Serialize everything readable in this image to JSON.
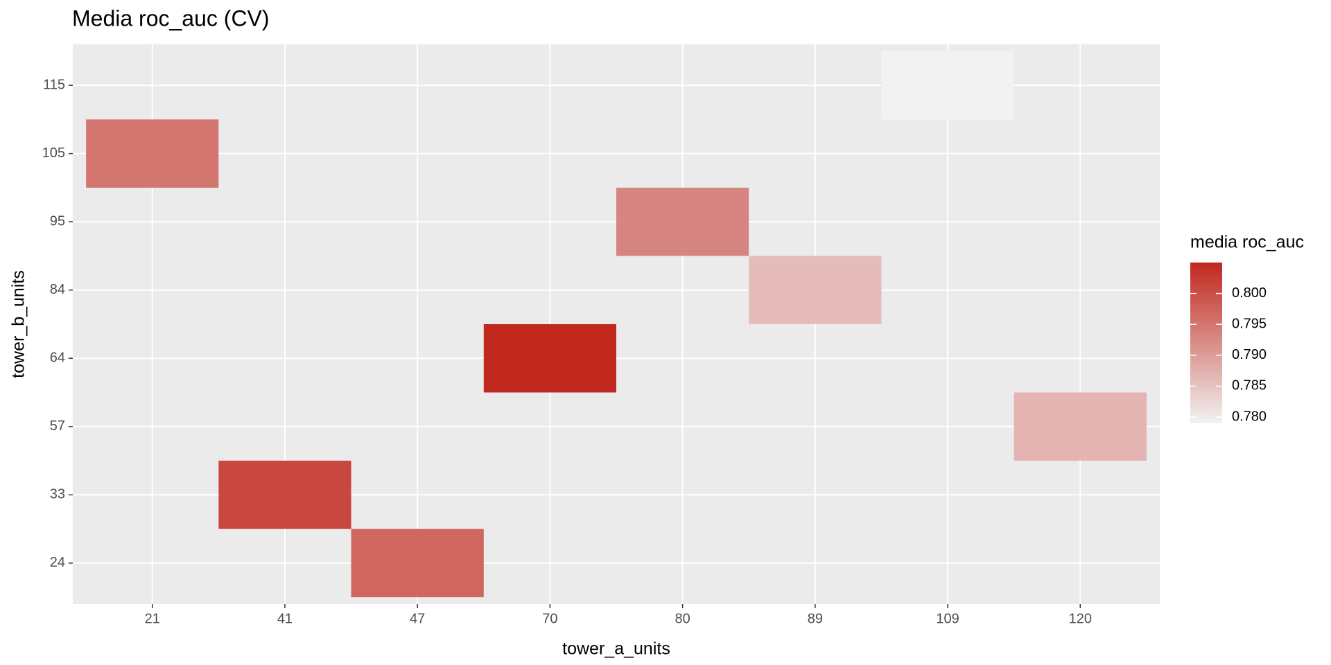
{
  "chart_data": {
    "type": "heatmap",
    "title": "Media roc_auc (CV)",
    "x_label": "tower_a_units",
    "y_label": "tower_b_units",
    "x_categories": [
      "21",
      "41",
      "47",
      "70",
      "80",
      "89",
      "109",
      "120"
    ],
    "y_categories": [
      "24",
      "33",
      "57",
      "64",
      "84",
      "95",
      "105",
      "115"
    ],
    "cells": [
      {
        "x": "21",
        "y": "105",
        "value": 0.795
      },
      {
        "x": "41",
        "y": "33",
        "value": 0.801
      },
      {
        "x": "47",
        "y": "24",
        "value": 0.797
      },
      {
        "x": "70",
        "y": "64",
        "value": 0.805
      },
      {
        "x": "80",
        "y": "95",
        "value": 0.793
      },
      {
        "x": "89",
        "y": "84",
        "value": 0.786
      },
      {
        "x": "109",
        "y": "115",
        "value": 0.779
      },
      {
        "x": "120",
        "y": "57",
        "value": 0.787
      }
    ],
    "legend_title": "media roc_auc",
    "color_low": "#f2f2f2",
    "color_high": "#c0281e",
    "colorbar_lim": [
      0.779,
      0.805
    ],
    "colorbar_ticks": [
      {
        "value": 0.78,
        "label": "0.780"
      },
      {
        "value": 0.785,
        "label": "0.785"
      },
      {
        "value": 0.79,
        "label": "0.790"
      },
      {
        "value": 0.795,
        "label": "0.795"
      },
      {
        "value": 0.8,
        "label": "0.800"
      }
    ],
    "grid": true
  }
}
